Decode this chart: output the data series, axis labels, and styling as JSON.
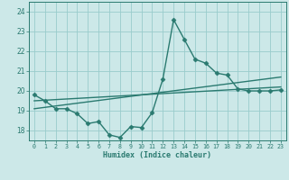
{
  "xlabel": "Humidex (Indice chaleur)",
  "xlim": [
    -0.5,
    23.5
  ],
  "ylim": [
    17.5,
    24.5
  ],
  "yticks": [
    18,
    19,
    20,
    21,
    22,
    23,
    24
  ],
  "xticks": [
    0,
    1,
    2,
    3,
    4,
    5,
    6,
    7,
    8,
    9,
    10,
    11,
    12,
    13,
    14,
    15,
    16,
    17,
    18,
    19,
    20,
    21,
    22,
    23
  ],
  "bg_color": "#cce8e8",
  "grid_color": "#99cccc",
  "line_color": "#2a7a70",
  "line1_x": [
    0,
    1,
    2,
    3,
    4,
    5,
    6,
    7,
    8,
    9,
    10,
    11,
    12,
    13,
    14,
    15,
    16,
    17,
    18,
    19,
    20,
    21,
    22,
    23
  ],
  "line1_y": [
    19.8,
    19.5,
    19.1,
    19.1,
    18.85,
    18.35,
    18.45,
    17.78,
    17.65,
    18.2,
    18.15,
    18.9,
    20.6,
    23.6,
    22.6,
    21.6,
    21.4,
    20.9,
    20.8,
    20.1,
    20.0,
    20.0,
    20.0,
    20.05
  ],
  "line2_x": [
    0,
    23
  ],
  "line2_y": [
    19.5,
    20.2
  ],
  "line3_x": [
    0,
    23
  ],
  "line3_y": [
    19.1,
    20.7
  ],
  "marker": "D",
  "markersize": 2.5,
  "linewidth": 1.0
}
